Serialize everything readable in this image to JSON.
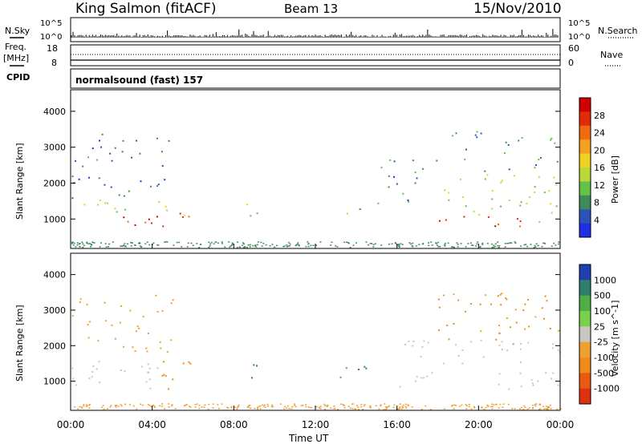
{
  "header": {
    "station": "King Salmon (fitACF)",
    "beam": "Beam 13",
    "date": "15/Nov/2010"
  },
  "top_panels": {
    "nsky_label": "N.Sky",
    "nsearch_label": "N.Search",
    "freq_label_line1": "Freq.",
    "freq_label_line2": "[MHz]",
    "nave_label": "Nave",
    "cpid_label": "CPID",
    "cpid_value": "normalsound (fast) 157",
    "noise_ticks_left": [
      "10^5",
      "10^0"
    ],
    "noise_ticks_right": [
      "10^5",
      "10^0"
    ],
    "freq_ticks": [
      "18",
      "8"
    ],
    "nave_ticks": [
      "60",
      "0"
    ]
  },
  "axes": {
    "xlabel": "Time UT",
    "ylabel": "Slant Range [km]",
    "x_ticks": [
      "00:00",
      "04:00",
      "08:00",
      "12:00",
      "16:00",
      "20:00",
      "00:00"
    ],
    "y_ticks": [
      "1000",
      "2000",
      "3000",
      "4000"
    ]
  },
  "power_colorbar": {
    "label": "Power [dB]",
    "ticks": [
      "4",
      "8",
      "12",
      "16",
      "20",
      "24",
      "28"
    ],
    "colors": [
      "#1f2ee8",
      "#2b54b8",
      "#3f8a5a",
      "#62c24a",
      "#b9d83a",
      "#f0d020",
      "#f5a020",
      "#f06a10",
      "#e02a0a",
      "#d00000"
    ]
  },
  "velocity_colorbar": {
    "label": "Velocity [m s^-1]",
    "ticks": [
      "1000",
      "500",
      "100",
      "25",
      "-25",
      "-100",
      "-500",
      "-1000"
    ],
    "colors": [
      "#2040b0",
      "#2f7f6f",
      "#4fae48",
      "#7ad04a",
      "#c8c8c0",
      "#f0a030",
      "#f08a1a",
      "#e85a10",
      "#e03010"
    ]
  },
  "chart_data": [
    {
      "type": "heatmap",
      "title": "Power",
      "xlabel": "Time UT",
      "ylabel": "Slant Range [km]",
      "xlim": [
        0,
        24
      ],
      "ylim": [
        180,
        4600
      ],
      "blobs": [
        {
          "t": [
            0.0,
            6.0
          ],
          "r": [
            800,
            1100
          ],
          "value": 26
        },
        {
          "t": [
            0.0,
            6.0
          ],
          "r": [
            1100,
            1600
          ],
          "value": 14
        },
        {
          "t": [
            0.0,
            5.0
          ],
          "r": [
            1600,
            3500
          ],
          "value": 6
        },
        {
          "t": [
            4.8,
            6.0
          ],
          "r": [
            800,
            1300
          ],
          "value": 24
        },
        {
          "t": [
            8.5,
            9.5
          ],
          "r": [
            900,
            1600
          ],
          "value": 14
        },
        {
          "t": [
            12.5,
            15.0
          ],
          "r": [
            1000,
            1500
          ],
          "value": 10
        },
        {
          "t": [
            15.0,
            18.0
          ],
          "r": [
            1400,
            2700
          ],
          "value": 6
        },
        {
          "t": [
            18.0,
            24.0
          ],
          "r": [
            800,
            1100
          ],
          "value": 24
        },
        {
          "t": [
            18.0,
            24.0
          ],
          "r": [
            1100,
            2300
          ],
          "value": 14
        },
        {
          "t": [
            18.5,
            24.0
          ],
          "r": [
            2300,
            3500
          ],
          "value": 8
        }
      ]
    },
    {
      "type": "heatmap",
      "title": "Velocity",
      "xlabel": "Time UT",
      "ylabel": "Slant Range [km]",
      "xlim": [
        0,
        24
      ],
      "ylim": [
        180,
        4600
      ],
      "blobs": [
        {
          "t": [
            0.0,
            4.5
          ],
          "r": [
            800,
            1800
          ],
          "value": 0
        },
        {
          "t": [
            3.8,
            6.0
          ],
          "r": [
            700,
            1700
          ],
          "value": -150
        },
        {
          "t": [
            0.0,
            5.0
          ],
          "r": [
            1800,
            3500
          ],
          "value": -60
        },
        {
          "t": [
            8.5,
            9.5
          ],
          "r": [
            900,
            1600
          ],
          "value": 150
        },
        {
          "t": [
            12.5,
            15.0
          ],
          "r": [
            1000,
            1500
          ],
          "value": 120
        },
        {
          "t": [
            16.0,
            24.0
          ],
          "r": [
            800,
            2200
          ],
          "value": 0
        },
        {
          "t": [
            18.0,
            24.0
          ],
          "r": [
            2000,
            3500
          ],
          "value": -120
        }
      ]
    }
  ]
}
